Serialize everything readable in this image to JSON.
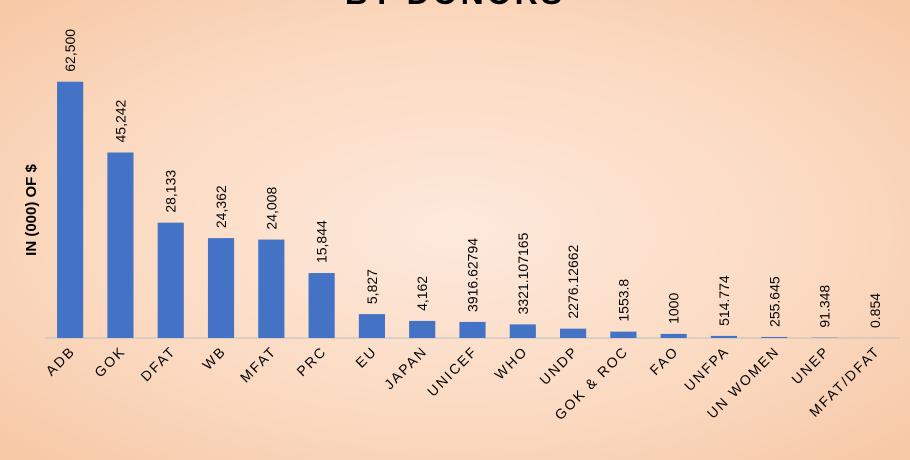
{
  "chart_data": {
    "type": "bar",
    "title": "BY DONORS",
    "y_axis_label": "IN (000) OF $",
    "categories": [
      "ADB",
      "GOK",
      "DFAT",
      "WB",
      "MFAT",
      "PRC",
      "EU",
      "JAPAN",
      "UNICEF",
      "WHO",
      "UNDP",
      "GOK & ROC",
      "FAO",
      "UNFPA",
      "UN WOMEN",
      "UNEP",
      "MFAT/DFAT"
    ],
    "values": [
      62500,
      45242,
      28133,
      24362,
      24008,
      15844,
      5827,
      4162,
      3916.62794,
      3321.107165,
      2276.12662,
      1553.8,
      1000,
      514.774,
      255.645,
      91.348,
      0.854
    ],
    "value_labels": [
      "62,500",
      "45,242",
      "28,133",
      "24,362",
      "24,008",
      "15,844",
      "5,827",
      "4,162",
      "3916.62794",
      "3321.107165",
      "2276.12662",
      "1553.8",
      "1000",
      "514.774",
      "255.645",
      "91.348",
      "0.854"
    ],
    "color": "#4472c4",
    "ylim": [
      0,
      70000
    ],
    "grid": false
  }
}
